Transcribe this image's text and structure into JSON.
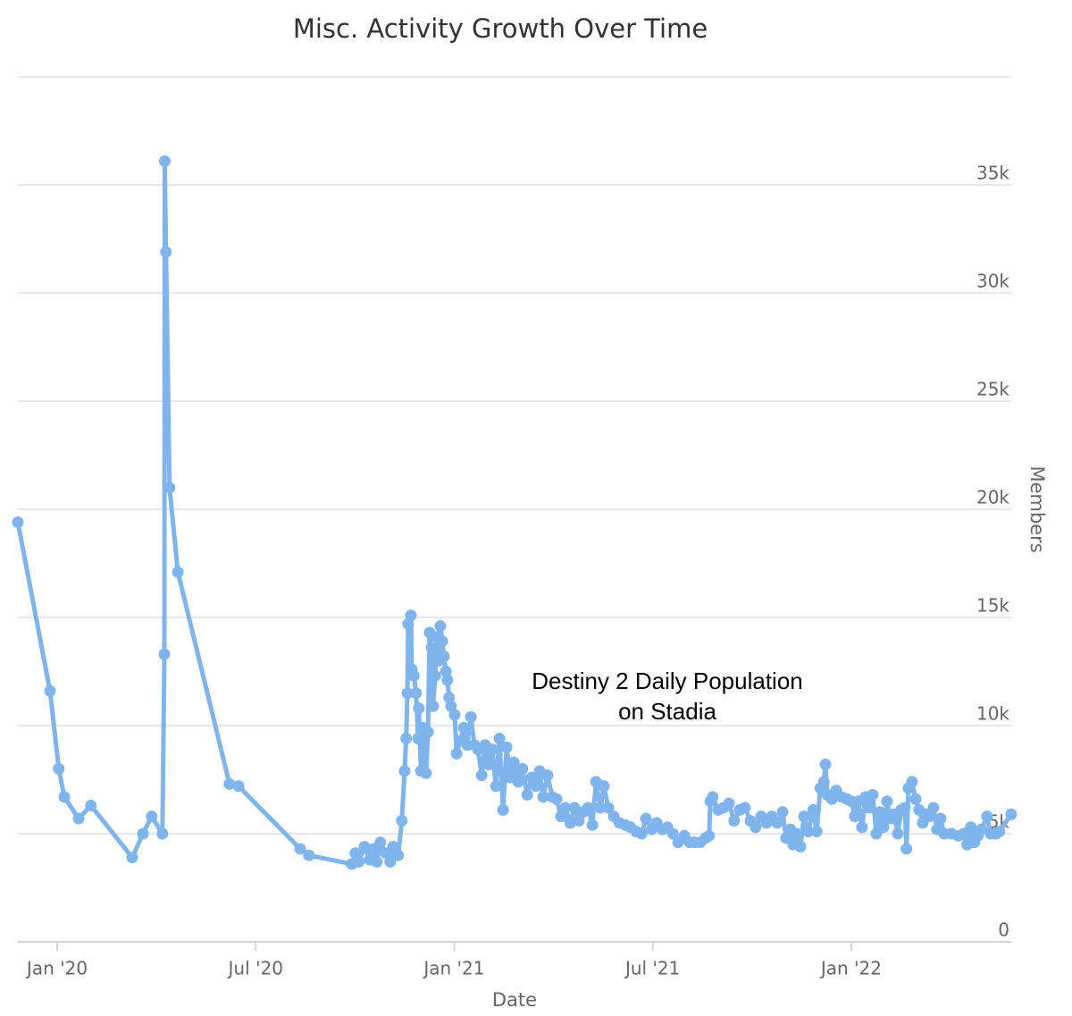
{
  "chart_data": {
    "type": "line",
    "title": "Misc. Activity Growth Over Time",
    "xlabel": "Date",
    "ylabel": "Members",
    "annotation": [
      "Destiny 2 Daily Population",
      "on Stadia"
    ],
    "color": "#7fb4ec",
    "grid": true,
    "xlim": [
      2019.901,
      2022.403
    ],
    "xticks": [
      {
        "value": 2020.0,
        "label": "Jan '20"
      },
      {
        "value": 2020.5,
        "label": "Jul '20"
      },
      {
        "value": 2021.0,
        "label": "Jan '21"
      },
      {
        "value": 2021.5,
        "label": "Jul '21"
      },
      {
        "value": 2022.0,
        "label": "Jan '22"
      }
    ],
    "ylim": [
      0,
      40000
    ],
    "yticks": [
      0,
      {
        "value": 5000,
        "label": "5k"
      },
      {
        "value": 10000,
        "label": "10k"
      },
      {
        "value": 15000,
        "label": "15k"
      },
      {
        "value": 20000,
        "label": "20k"
      },
      {
        "value": 25000,
        "label": "25k"
      },
      {
        "value": 30000,
        "label": "30k"
      },
      {
        "value": 35000,
        "label": "35k"
      }
    ],
    "x": [
      2019.901,
      2019.982,
      2020.004,
      2020.018,
      2020.054,
      2020.085,
      2020.189,
      2020.216,
      2020.238,
      2020.265,
      2020.27,
      2020.271,
      2020.274,
      2020.283,
      2020.304,
      2020.434,
      2020.457,
      2020.612,
      2020.634,
      2020.742,
      2020.751,
      2020.76,
      2020.774,
      2020.787,
      2020.796,
      2020.805,
      2020.814,
      2020.828,
      2020.839,
      2020.846,
      2020.859,
      2020.868,
      2020.875,
      2020.879,
      2020.882,
      2020.884,
      2020.891,
      2020.893,
      2020.898,
      2020.904,
      2020.909,
      2020.911,
      2020.916,
      2020.922,
      2020.929,
      2020.934,
      2020.938,
      2020.943,
      2020.947,
      2020.952,
      2020.956,
      2020.961,
      2020.965,
      2020.97,
      2020.974,
      2020.979,
      2020.983,
      2020.987,
      2020.992,
      2021.001,
      2021.006,
      2021.015,
      2021.024,
      2021.033,
      2021.042,
      2021.051,
      2021.06,
      2021.069,
      2021.078,
      2021.087,
      2021.096,
      2021.105,
      2021.114,
      2021.123,
      2021.132,
      2021.141,
      2021.15,
      2021.161,
      2021.172,
      2021.184,
      2021.195,
      2021.206,
      2021.215,
      2021.224,
      2021.235,
      2021.247,
      2021.258,
      2021.269,
      2021.28,
      2021.292,
      2021.303,
      2021.314,
      2021.325,
      2021.337,
      2021.348,
      2021.357,
      2021.368,
      2021.377,
      2021.388,
      2021.402,
      2021.416,
      2021.431,
      2021.444,
      2021.458,
      2021.472,
      2021.483,
      2021.497,
      2021.51,
      2021.524,
      2021.537,
      2021.551,
      2021.564,
      2021.58,
      2021.593,
      2021.606,
      2021.62,
      2021.633,
      2021.642,
      2021.645,
      2021.651,
      2021.665,
      2021.678,
      2021.692,
      2021.705,
      2021.719,
      2021.732,
      2021.746,
      2021.759,
      2021.773,
      2021.786,
      2021.8,
      2021.813,
      2021.827,
      2021.836,
      2021.847,
      2021.854,
      2021.863,
      2021.872,
      2021.881,
      2021.892,
      2021.904,
      2021.913,
      2021.922,
      2021.931,
      2021.935,
      2021.94,
      2021.951,
      2021.962,
      2021.976,
      2021.989,
      2022.0,
      2022.009,
      2022.018,
      2022.027,
      2022.036,
      2022.045,
      2022.054,
      2022.063,
      2022.072,
      2022.081,
      2022.09,
      2022.099,
      2022.108,
      2022.117,
      2022.126,
      2022.135,
      2022.139,
      2022.144,
      2022.153,
      2022.162,
      2022.171,
      2022.18,
      2022.189,
      2022.198,
      2022.207,
      2022.216,
      2022.225,
      2022.234,
      2022.252,
      2022.27,
      2022.283,
      2022.292,
      2022.301,
      2022.31,
      2022.319,
      2022.328,
      2022.342,
      2022.351,
      2022.364,
      2022.373,
      2022.403
    ],
    "values": [
      19400,
      11600,
      8000,
      6700,
      5700,
      6300,
      3900,
      5000,
      5800,
      5000,
      13300,
      36100,
      31900,
      21000,
      17100,
      7300,
      7200,
      4300,
      4000,
      3600,
      4100,
      3700,
      4400,
      3800,
      4300,
      3700,
      4600,
      4100,
      3700,
      4400,
      4000,
      5600,
      7900,
      9400,
      11500,
      14700,
      15100,
      12600,
      12300,
      11500,
      9400,
      10800,
      7900,
      9900,
      7800,
      9700,
      14300,
      13600,
      10900,
      12300,
      14100,
      13000,
      14600,
      13900,
      13200,
      12500,
      12100,
      11300,
      10900,
      10500,
      8700,
      9300,
      9900,
      9100,
      10400,
      9100,
      8900,
      7700,
      9100,
      8200,
      8900,
      7200,
      9400,
      6100,
      9000,
      7600,
      8300,
      7400,
      8000,
      6800,
      7600,
      7200,
      7900,
      6700,
      7700,
      6700,
      6600,
      5800,
      6200,
      5500,
      6200,
      5600,
      6000,
      6200,
      5400,
      7400,
      6200,
      7200,
      6200,
      5800,
      5500,
      5400,
      5300,
      5100,
      5000,
      5700,
      5200,
      5500,
      5200,
      5300,
      5000,
      4600,
      4900,
      4600,
      4600,
      4600,
      4800,
      4900,
      6500,
      6700,
      6100,
      6200,
      6400,
      5600,
      6100,
      6200,
      5600,
      5300,
      5800,
      5500,
      5800,
      5500,
      6000,
      4800,
      5200,
      4500,
      5000,
      4400,
      5800,
      5100,
      6100,
      5100,
      7100,
      7400,
      8200,
      6800,
      6600,
      7000,
      6700,
      6600,
      6500,
      5800,
      6500,
      5300,
      6700,
      6200,
      6800,
      5000,
      6000,
      5300,
      6500,
      5700,
      5900,
      5000,
      6100,
      6200,
      4300,
      7100,
      7400,
      6600,
      6100,
      5500,
      5900,
      5800,
      6200,
      5200,
      5700,
      5000,
      5000,
      4900,
      5000,
      4500,
      5300,
      4600,
      4900,
      5200,
      5800,
      5000,
      5000,
      5100,
      5900
    ]
  }
}
